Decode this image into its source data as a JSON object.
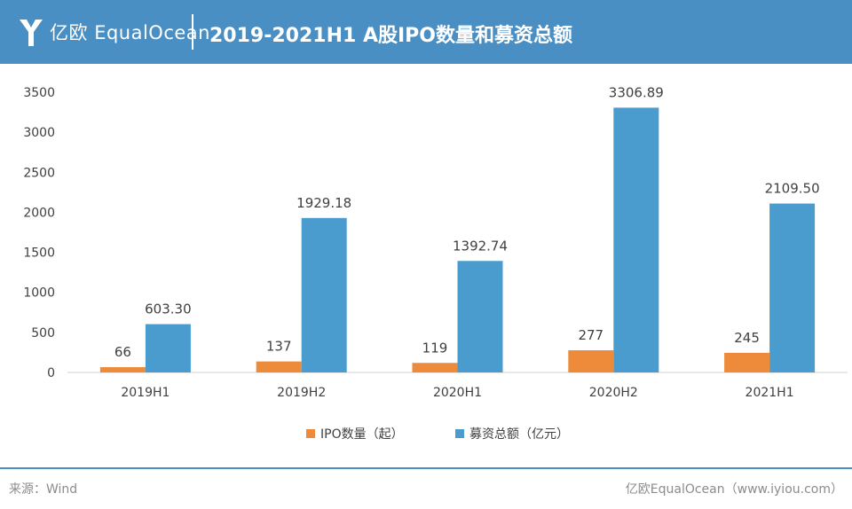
{
  "header": {
    "brand_cn": "亿欧",
    "brand_en": "EqualOcean",
    "title": "2019-2021H1 A股IPO数量和募资总额",
    "background_color": "#4a8fc3"
  },
  "chart_data": {
    "type": "bar",
    "categories": [
      "2019H1",
      "2019H2",
      "2020H1",
      "2020H2",
      "2021H1"
    ],
    "series": [
      {
        "name": "IPO数量（起）",
        "color": "#ed8b3a",
        "values": [
          66,
          137,
          119,
          277,
          245
        ],
        "labels": [
          "66",
          "137",
          "119",
          "277",
          "245"
        ]
      },
      {
        "name": "募资总额（亿元）",
        "color": "#4a9ccf",
        "values": [
          603.3,
          1929.18,
          1392.74,
          3306.89,
          2109.5
        ],
        "labels": [
          "603.30",
          "1929.18",
          "1392.74",
          "3306.89",
          "2109.50"
        ]
      }
    ],
    "ylim": [
      0,
      3500
    ],
    "yticks": [
      "0",
      "500",
      "1000",
      "1500",
      "2000",
      "2500",
      "3000",
      "3500"
    ],
    "grid": false,
    "legend_position": "bottom"
  },
  "footer": {
    "source": "来源：Wind",
    "brand": "亿欧EqualOcean（www.iyiou.com）"
  }
}
